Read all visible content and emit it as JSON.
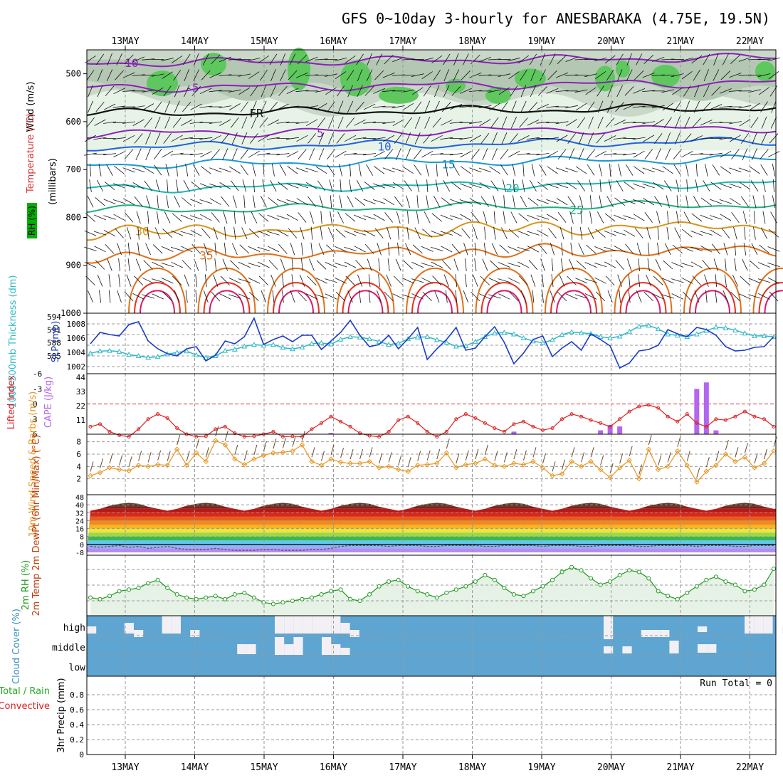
{
  "title": "GFS 0~10day 3-hourly for ANESBARAKA (4.75E, 19.5N)",
  "colors": {
    "grid": "#999999",
    "rh_green": "#00b000",
    "temp": "#e0502a",
    "wind": "#5050ff",
    "slp": "#1a3cc8",
    "thickness": "#30b8c8",
    "lifted_index": "#dd2222",
    "cape": "#b366ee",
    "wind10": "#e8951e",
    "dewpt": "#555555",
    "rh2m": "#229922",
    "cloud": "#5fa5d2",
    "precip_total": "#22aa22",
    "precip_conv": "#dd2222"
  },
  "chart_data": [
    {
      "type": "heatmap",
      "name": "upper-air",
      "x": [
        "13MAY",
        "14MAY",
        "15MAY",
        "16MAY",
        "17MAY",
        "18MAY",
        "19MAY",
        "20MAY",
        "21MAY",
        "22MAY"
      ],
      "ylabel": "(millibars)",
      "yticks": [
        500,
        600,
        700,
        800,
        900,
        1000
      ],
      "ylim": [
        1000,
        450
      ],
      "side_labels": [
        "RH (%)",
        "Temperature (°C)",
        "Wind (m/s)"
      ],
      "temperature_contours": [
        {
          "label": "-10",
          "level": -10
        },
        {
          "label": "-5",
          "level": -5
        },
        {
          "label": "FR",
          "level": 0
        },
        {
          "label": "5",
          "level": 5
        },
        {
          "label": "10",
          "level": 10
        },
        {
          "label": "15",
          "level": 15
        },
        {
          "label": "20",
          "level": 20
        },
        {
          "label": "25",
          "level": 25
        },
        {
          "label": "30",
          "level": 30
        },
        {
          "label": "35",
          "level": 35
        }
      ],
      "rh_contour_labels": [
        "30",
        "10",
        "50"
      ]
    },
    {
      "type": "line",
      "name": "slp-thickness",
      "ylabel_left": "1000-500mb Thickness (dm)",
      "ylabel_right": "SLP (mb)",
      "yticks_left": [
        585,
        588,
        591,
        594
      ],
      "yticks_right": [
        1002,
        1004,
        1006,
        1008
      ],
      "series": [
        {
          "name": "SLP",
          "values": [
            1005.2,
            1006.8,
            1006.5,
            1006.3,
            1007.9,
            1008.3,
            1005.6,
            1004.5,
            1003.8,
            1003.5,
            1004.5,
            1004.8,
            1002.8,
            1003.6,
            1005.6,
            1005.2,
            1006.2,
            1008.8,
            1005.1,
            1005.8,
            1006.3,
            1005.5,
            1006.4,
            1006.4,
            1004.4,
            1005.6,
            1006.8,
            1008.5,
            1006.4,
            1004.8,
            1005.1,
            1006.4,
            1004.5,
            1005.9,
            1007.5,
            1003.0,
            1004.5,
            1005.8,
            1007.5,
            1004.3,
            1004.6,
            1006.2,
            1007.6,
            1005.4,
            1002.4,
            1003.9,
            1005.8,
            1006.3,
            1003.4,
            1004.6,
            1005.5,
            1004.3,
            1006.6,
            1005.8,
            1004.9,
            1001.8,
            1002.5,
            1004.2,
            1004.4,
            1005.0,
            1007.2,
            1006.6,
            1006.2,
            1007.5,
            1007.2,
            1006.4,
            1004.8,
            1004.2,
            1004.3,
            1004.7,
            1004.8,
            1006.2
          ]
        },
        {
          "name": "Thickness",
          "values": [
            585.6,
            586.1,
            586.2,
            586.0,
            585.3,
            585.0,
            584.6,
            584.8,
            585.4,
            585.8,
            586.1,
            585.2,
            584.6,
            585.0,
            586.2,
            586.5,
            587.2,
            587.6,
            587.4,
            587.6,
            586.9,
            586.6,
            587.0,
            587.8,
            588.0,
            587.7,
            588.8,
            589.4,
            589.3,
            588.9,
            588.3,
            587.6,
            587.9,
            588.9,
            589.3,
            589.4,
            588.7,
            588.1,
            587.2,
            587.3,
            588.3,
            589.4,
            590.2,
            590.4,
            590.0,
            589.1,
            588.4,
            588.0,
            588.7,
            589.9,
            590.5,
            590.3,
            590.1,
            589.4,
            589.1,
            589.5,
            590.6,
            591.8,
            592.0,
            591.2,
            590.0,
            589.7,
            589.4,
            590.0,
            590.8,
            591.6,
            591.4,
            590.9,
            590.2,
            589.6,
            589.6,
            589.4
          ]
        }
      ]
    },
    {
      "type": "bar",
      "name": "li-cape",
      "ylabel_left": "Lifted Index",
      "ylabel_right": "CAPE (J/kg)",
      "yticks_left": [
        -6,
        -3,
        0,
        3,
        6
      ],
      "yticks_right": [
        11,
        22,
        33,
        44
      ],
      "series": [
        {
          "name": "Lifted Index",
          "values": [
            4.5,
            4.0,
            5.5,
            6.2,
            6.5,
            5.0,
            3.0,
            2.0,
            2.8,
            4.8,
            6.0,
            6.5,
            6.4,
            5.0,
            4.5,
            5.8,
            6.5,
            6.4,
            6.0,
            5.5,
            6.5,
            6.4,
            6.5,
            5.0,
            3.8,
            2.5,
            3.5,
            4.5,
            5.8,
            6.3,
            6.5,
            5.5,
            3.2,
            2.5,
            3.8,
            5.5,
            6.5,
            5.5,
            3.0,
            2.0,
            2.8,
            3.8,
            4.8,
            5.5,
            4.0,
            3.5,
            4.5,
            5.2,
            4.8,
            3.0,
            2.0,
            2.5,
            3.2,
            3.8,
            4.5,
            3.0,
            1.5,
            0.5,
            0.2,
            0.8,
            2.5,
            3.5,
            2.0,
            3.8,
            4.5,
            3.0,
            3.2,
            2.5,
            1.5,
            2.5,
            3.0,
            4.5
          ]
        },
        {
          "name": "CAPE",
          "values": [
            0,
            0,
            0,
            0,
            0,
            0,
            0,
            0,
            0,
            0,
            0,
            0,
            0,
            0,
            0,
            0,
            0,
            0,
            0,
            0,
            0,
            0,
            0,
            0,
            0,
            1,
            0,
            0,
            0,
            0,
            0,
            0,
            0,
            0,
            0,
            0,
            0,
            0,
            0,
            0,
            0,
            0,
            0,
            0,
            2,
            0,
            0,
            0,
            0,
            0,
            0,
            0,
            0,
            3,
            7,
            6,
            0,
            0,
            0,
            0,
            0,
            0,
            0,
            35,
            40,
            3,
            0,
            0,
            0,
            0,
            0,
            0
          ]
        }
      ]
    },
    {
      "type": "line",
      "name": "wind10m",
      "ylabel": "10m Wind Speed & Barbs (m/s)",
      "yticks": [
        2,
        4,
        6,
        8
      ],
      "series": [
        {
          "name": "10m Wind Speed",
          "values": [
            2.5,
            3.0,
            3.8,
            3.5,
            3.3,
            4.2,
            4.0,
            4.3,
            4.2,
            6.8,
            4.2,
            6.2,
            4.8,
            8.2,
            7.5,
            5.2,
            4.3,
            5.2,
            5.8,
            6.2,
            6.3,
            6.5,
            7.5,
            4.8,
            4.2,
            5.2,
            4.7,
            4.5,
            4.5,
            4.8,
            3.8,
            4.0,
            3.5,
            3.2,
            4.2,
            4.3,
            4.5,
            6.2,
            3.8,
            4.3,
            4.5,
            5.2,
            4.2,
            4.0,
            4.5,
            4.3,
            4.8,
            3.8,
            2.5,
            2.8,
            4.8,
            4.0,
            4.8,
            3.5,
            2.2,
            3.8,
            5.0,
            2.0,
            6.8,
            3.5,
            4.0,
            6.5,
            4.2,
            1.5,
            3.2,
            4.2,
            6.0,
            4.8,
            5.5,
            3.8,
            4.5,
            6.5
          ]
        }
      ]
    },
    {
      "type": "area",
      "name": "temp2m",
      "ylabel": "2m Temp 2m DewPt (6hr Min/Max) (°C)",
      "yticks": [
        -8,
        0,
        8,
        16,
        24,
        32,
        40,
        48
      ],
      "series": [
        {
          "name": "2m Temp",
          "values": [
            34,
            36,
            39,
            41,
            42,
            41,
            38,
            36,
            34,
            36,
            39,
            41,
            42,
            41,
            38,
            36,
            34,
            36,
            39,
            41,
            42,
            41,
            38,
            36,
            34,
            36,
            39,
            41,
            42,
            41,
            38,
            36,
            34,
            36,
            39,
            41,
            42,
            41,
            38,
            36,
            34,
            36,
            39,
            41,
            42,
            41,
            38,
            36,
            34,
            36,
            39,
            41,
            42,
            41,
            38,
            36,
            34,
            36,
            39,
            41,
            42,
            41,
            38,
            36,
            34,
            36,
            39,
            41,
            42,
            41,
            38,
            36
          ]
        },
        {
          "name": "2m DewPt",
          "values": [
            -2,
            -3,
            -2,
            -1,
            -3,
            -2,
            -4,
            -3,
            -2,
            -4,
            -5,
            -5,
            -5,
            -4,
            -5,
            -6,
            -6,
            -6,
            -5,
            -5,
            -6,
            -6,
            -6,
            -5,
            -5,
            -4,
            -2,
            -1,
            -1,
            -1,
            -1,
            -2,
            -1,
            -1,
            -1,
            -2,
            -2,
            -1,
            -1,
            -1,
            -1,
            -2,
            -2,
            -1,
            -1,
            -1,
            -1,
            -2,
            -1,
            -1,
            -1,
            -2,
            -2,
            -1,
            -1,
            -1,
            -1,
            -2,
            -2,
            -1,
            -1,
            -1,
            -1,
            -2,
            -1,
            -1,
            -1,
            -2,
            -2,
            -1,
            -1,
            -1
          ]
        }
      ]
    },
    {
      "type": "line",
      "name": "rh2m",
      "ylabel": "2m RH (%)",
      "series": [
        {
          "name": "2m RH",
          "values": [
            20,
            19,
            21,
            24,
            25,
            26,
            29,
            31,
            26,
            22,
            20,
            19,
            20,
            21,
            19,
            22,
            23,
            20,
            17,
            16,
            17,
            18,
            19,
            20,
            22,
            24,
            25,
            19,
            18,
            22,
            27,
            30,
            31,
            27,
            24,
            22,
            20,
            23,
            25,
            27,
            30,
            34,
            31,
            26,
            22,
            21,
            24,
            27,
            31,
            36,
            39,
            37,
            32,
            28,
            30,
            34,
            37,
            36,
            32,
            24,
            21,
            19,
            23,
            27,
            31,
            33,
            30,
            28,
            24,
            25,
            28,
            38
          ]
        }
      ]
    },
    {
      "type": "heatmap",
      "name": "cloud-cover",
      "ylabel": "Cloud Cover (%)",
      "rows": [
        "high",
        "middle",
        "low"
      ]
    },
    {
      "type": "bar",
      "name": "precip",
      "ylabel": "3hr Precip (mm)",
      "side_labels": [
        "Total / Rain",
        "Convective"
      ],
      "yticks": [
        0,
        0.2,
        0.4,
        0.6,
        0.8
      ],
      "ylim": [
        0,
        1
      ],
      "values": [],
      "annotation": "Run Total = 0"
    }
  ]
}
